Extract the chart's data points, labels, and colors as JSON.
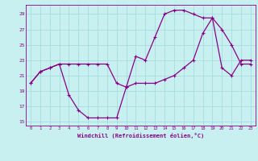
{
  "xlabel": "Windchill (Refroidissement éolien,°C)",
  "bg_color": "#c8f0f0",
  "line_color": "#8b008b",
  "marker": "+",
  "markersize": 3,
  "linewidth": 0.9,
  "xlim": [
    -0.5,
    23.5
  ],
  "ylim": [
    14.5,
    30.2
  ],
  "xticks": [
    0,
    1,
    2,
    3,
    4,
    5,
    6,
    7,
    8,
    9,
    10,
    11,
    12,
    13,
    14,
    15,
    16,
    17,
    18,
    19,
    20,
    21,
    22,
    23
  ],
  "yticks": [
    15,
    17,
    19,
    21,
    23,
    25,
    27,
    29
  ],
  "grid_color": "#a0d8d8",
  "curve1_x": [
    0,
    1,
    2,
    3,
    4,
    5,
    6,
    7,
    8,
    9,
    10,
    11,
    12,
    13,
    14,
    15,
    16,
    17,
    18,
    19,
    20,
    21,
    22,
    23
  ],
  "curve1_y": [
    20,
    21.5,
    22,
    22.5,
    18.5,
    16.5,
    15.5,
    15.5,
    15.5,
    15.5,
    19.5,
    20.0,
    20.0,
    20.0,
    20.5,
    21.0,
    22.0,
    23.0,
    26.5,
    28.5,
    22.0,
    21.0,
    23.0,
    23.0
  ],
  "curve2_x": [
    0,
    1,
    2,
    3,
    4,
    5,
    6,
    7,
    8,
    9,
    10,
    11,
    12,
    13,
    14,
    15,
    16,
    17,
    18,
    19,
    20,
    21,
    22,
    23
  ],
  "curve2_y": [
    20,
    21.5,
    22,
    22.5,
    22.5,
    22.5,
    22.5,
    22.5,
    22.5,
    20.0,
    19.5,
    23.5,
    23.0,
    26.0,
    29.0,
    29.5,
    29.5,
    29.0,
    28.5,
    28.5,
    27.0,
    25.0,
    22.5,
    22.5
  ]
}
